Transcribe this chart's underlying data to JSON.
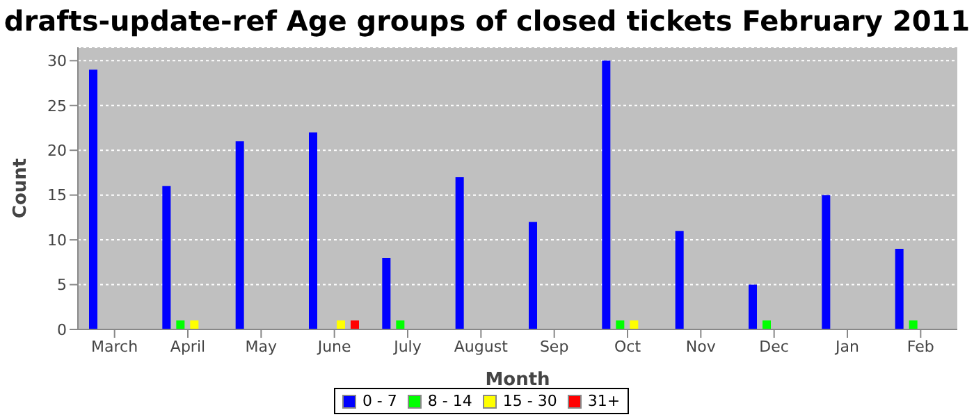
{
  "chart_data": {
    "type": "bar",
    "title": "drafts-update-ref Age groups of closed tickets February 2011",
    "xlabel": "Month",
    "ylabel": "Count",
    "categories": [
      "March",
      "April",
      "May",
      "June",
      "July",
      "August",
      "Sep",
      "Oct",
      "Nov",
      "Dec",
      "Jan",
      "Feb"
    ],
    "series": [
      {
        "name": "0 - 7",
        "color": "#0000ff",
        "values": [
          29,
          16,
          21,
          22,
          8,
          17,
          12,
          30,
          11,
          5,
          15,
          9
        ]
      },
      {
        "name": "8 - 14",
        "color": "#00ff00",
        "values": [
          null,
          1,
          null,
          null,
          1,
          null,
          null,
          1,
          null,
          1,
          null,
          1
        ]
      },
      {
        "name": "15 - 30",
        "color": "#ffff00",
        "values": [
          null,
          1,
          null,
          1,
          null,
          null,
          null,
          1,
          null,
          null,
          null,
          null
        ]
      },
      {
        "name": "31+",
        "color": "#ff0000",
        "values": [
          null,
          null,
          null,
          1,
          null,
          null,
          null,
          null,
          null,
          null,
          null,
          null
        ]
      }
    ],
    "ylim": [
      0,
      31.5
    ],
    "yticks": [
      0,
      5,
      10,
      15,
      20,
      25,
      30
    ],
    "grid": "y",
    "legend": "bottom"
  }
}
